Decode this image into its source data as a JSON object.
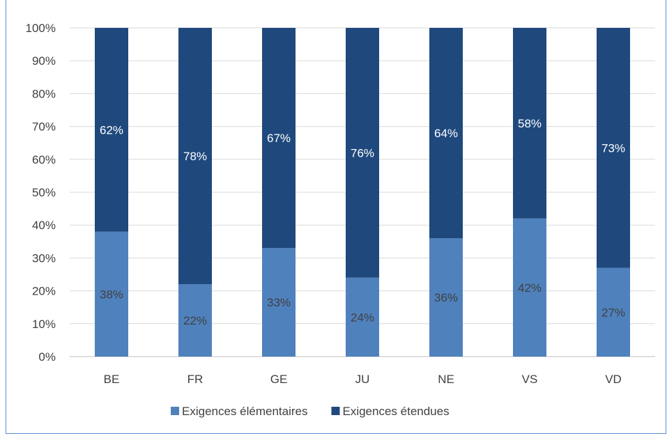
{
  "chart_data": {
    "type": "bar",
    "stacked": true,
    "categories": [
      "BE",
      "FR",
      "GE",
      "JU",
      "NE",
      "VS",
      "VD"
    ],
    "series": [
      {
        "name": "Exigences élémentaires",
        "values": [
          38,
          22,
          33,
          24,
          36,
          42,
          27
        ],
        "labels": [
          "38%",
          "22%",
          "33%",
          "24%",
          "36%",
          "42%",
          "27%"
        ],
        "color": "#4f81bd",
        "label_color": "#404040"
      },
      {
        "name": "Exigences étendues",
        "values": [
          62,
          78,
          67,
          76,
          64,
          58,
          73
        ],
        "labels": [
          "62%",
          "78%",
          "67%",
          "76%",
          "64%",
          "58%",
          "73%"
        ],
        "color": "#1f497d",
        "label_color": "#ffffff"
      }
    ],
    "y_ticks": [
      "0%",
      "10%",
      "20%",
      "30%",
      "40%",
      "50%",
      "60%",
      "70%",
      "80%",
      "90%",
      "100%"
    ],
    "ylim": [
      0,
      100
    ],
    "grid": true,
    "legend_position": "bottom",
    "title": "",
    "xlabel": "",
    "ylabel": ""
  }
}
